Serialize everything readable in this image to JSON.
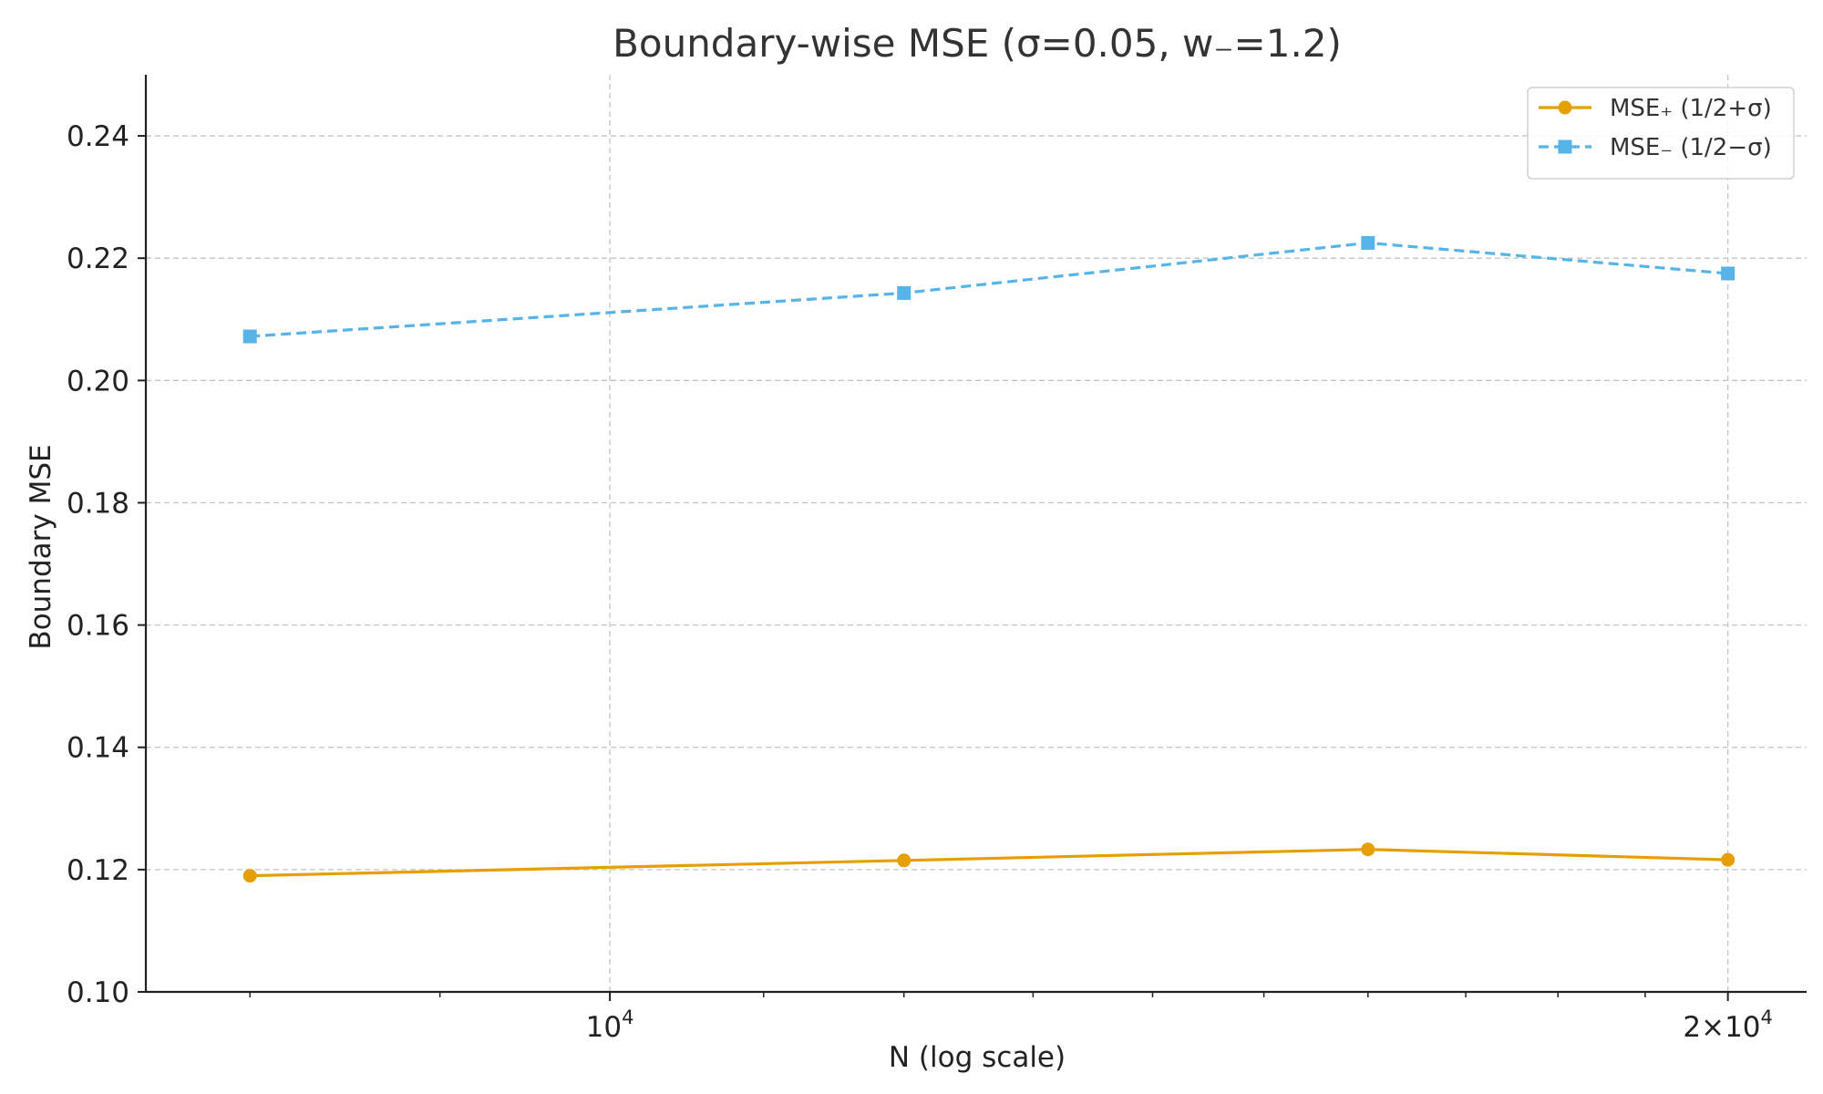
{
  "chart_data": {
    "type": "line",
    "title": "Boundary-wise MSE (σ=0.05, w₋=1.2)",
    "xlabel": "N (log scale)",
    "ylabel": "Boundary MSE",
    "xscale": "log",
    "xlim": [
      7500,
      21000
    ],
    "ylim": [
      0.1,
      0.25
    ],
    "x": [
      8000,
      12000,
      16000,
      20000
    ],
    "yticks": [
      0.1,
      0.12,
      0.14,
      0.16,
      0.18,
      0.2,
      0.22,
      0.24
    ],
    "ytick_labels": [
      "0.10",
      "0.12",
      "0.14",
      "0.16",
      "0.18",
      "0.20",
      "0.22",
      "0.24"
    ],
    "xticks_major": [
      10000,
      20000
    ],
    "xtick_major_labels": [
      {
        "base": "10",
        "exp": "4"
      },
      {
        "base": "2×10",
        "exp": "4"
      }
    ],
    "xticks_minor": [
      8000,
      9000,
      11000,
      12000,
      13000,
      14000,
      15000,
      16000,
      17000,
      18000,
      19000
    ],
    "grid": true,
    "legend_position": "top-right",
    "series": [
      {
        "name": "MSE₊ (1/2+σ)",
        "values": [
          0.119,
          0.1215,
          0.1233,
          0.1216
        ],
        "color": "#E69F00",
        "marker": "circle",
        "linestyle": "solid"
      },
      {
        "name": "MSE₋ (1/2−σ)",
        "values": [
          0.2072,
          0.2143,
          0.2225,
          0.2175
        ],
        "color": "#56B4E9",
        "marker": "square",
        "linestyle": "dashed"
      }
    ]
  }
}
